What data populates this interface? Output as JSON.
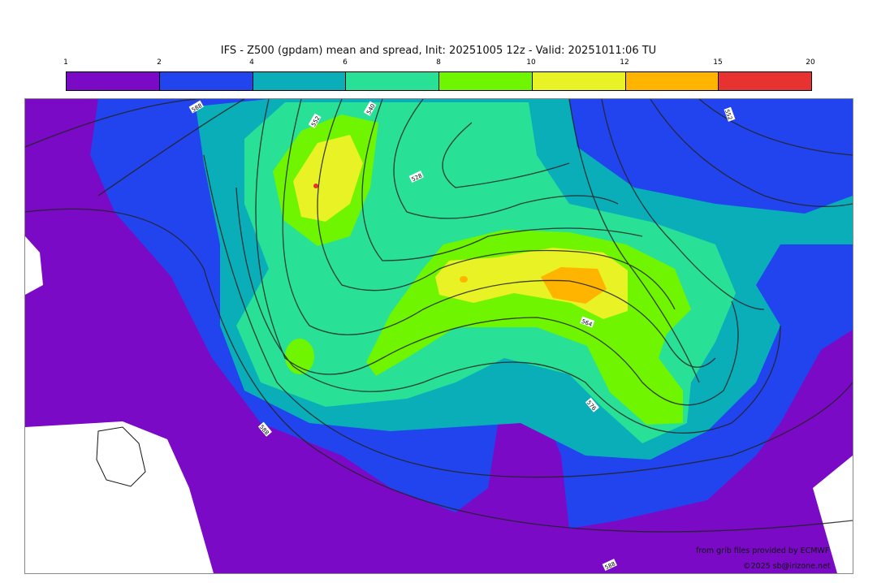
{
  "title": "IFS - Z500 (gpdam) mean and spread, Init: 20251005 12z - Valid: 20251011:06 TU",
  "colorbar": {
    "ticks": [
      "1",
      "2",
      "4",
      "6",
      "8",
      "10",
      "12",
      "15",
      "20"
    ],
    "colors": [
      "#7a0ac6",
      "#2244ee",
      "#0aaeb8",
      "#28e096",
      "#6ff500",
      "#e8f224",
      "#ffb400",
      "#e83232"
    ]
  },
  "contour_labels": [
    "588",
    "552",
    "540",
    "528",
    "552",
    "564",
    "576",
    "588",
    "588"
  ],
  "credits": {
    "source": "from grib files provided by ECMWF",
    "copyright": "©2025 sb@irizone.net"
  }
}
